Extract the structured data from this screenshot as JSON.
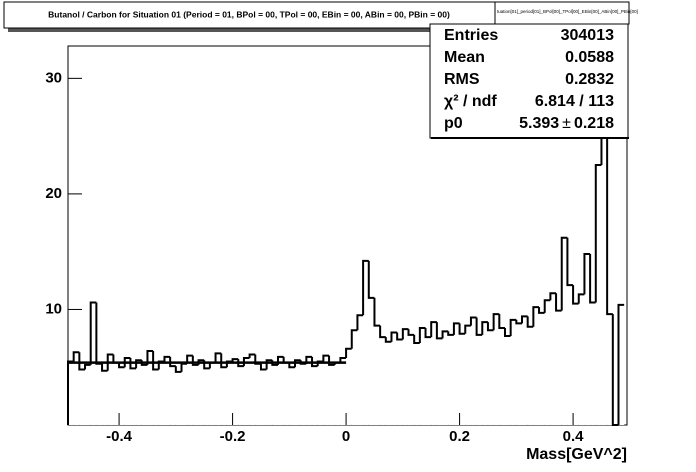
{
  "chart_data": {
    "type": "histogram",
    "title": "Butanol / Carbon for Situation 01 (Period = 01, BPol = 00, TPol = 00, EBin = 00, ABin = 00, PBin = 00)",
    "histogram_name": "tuation[01]_period[01]_BPol[00]_TPol[00]_EBin[00]_ABin[00]_PBin[00]",
    "x_label": "Mass[GeV^2]",
    "bins": [
      -0.49,
      -0.48,
      -0.47,
      -0.46,
      -0.45,
      -0.44,
      -0.43,
      -0.42,
      -0.41,
      -0.4,
      -0.39,
      -0.38,
      -0.37,
      -0.36,
      -0.35,
      -0.34,
      -0.33,
      -0.32,
      -0.31,
      -0.3,
      -0.29,
      -0.28,
      -0.27,
      -0.26,
      -0.25,
      -0.24,
      -0.23,
      -0.22,
      -0.21,
      -0.2,
      -0.19,
      -0.18,
      -0.17,
      -0.16,
      -0.15,
      -0.14,
      -0.13,
      -0.12,
      -0.11,
      -0.1,
      -0.09,
      -0.08,
      -0.07,
      -0.06,
      -0.05,
      -0.04,
      -0.03,
      -0.02,
      -0.01,
      0.0,
      0.01,
      0.02,
      0.03,
      0.04,
      0.05,
      0.06,
      0.07,
      0.08,
      0.09,
      0.1,
      0.11,
      0.12,
      0.13,
      0.14,
      0.15,
      0.16,
      0.17,
      0.18,
      0.19,
      0.2,
      0.21,
      0.22,
      0.23,
      0.24,
      0.25,
      0.26,
      0.27,
      0.28,
      0.29,
      0.3,
      0.31,
      0.32,
      0.33,
      0.34,
      0.35,
      0.36,
      0.37,
      0.38,
      0.39,
      0.4,
      0.41,
      0.42,
      0.43,
      0.44,
      0.45,
      0.46,
      0.47,
      0.48,
      0.49
    ],
    "values": [
      5.5,
      6.3,
      4.8,
      5.2,
      10.6,
      5.3,
      4.7,
      6.1,
      5.4,
      5.0,
      5.8,
      4.9,
      5.6,
      5.2,
      6.4,
      4.8,
      5.5,
      5.9,
      5.1,
      4.6,
      5.3,
      6.0,
      5.2,
      5.6,
      4.9,
      5.4,
      6.2,
      5.0,
      5.5,
      5.7,
      5.1,
      5.8,
      6.1,
      5.3,
      4.8,
      5.6,
      5.2,
      5.9,
      5.4,
      5.0,
      5.6,
      5.3,
      5.9,
      5.1,
      5.5,
      6.0,
      5.2,
      5.4,
      5.8,
      6.6,
      8.2,
      9.5,
      14.2,
      11.0,
      8.6,
      7.6,
      7.2,
      8.0,
      7.4,
      8.3,
      7.8,
      7.1,
      8.4,
      7.6,
      8.9,
      7.5,
      8.1,
      7.8,
      8.8,
      7.9,
      8.6,
      9.3,
      7.8,
      8.9,
      8.2,
      9.6,
      8.4,
      7.7,
      9.1,
      8.8,
      9.4,
      8.5,
      10.2,
      9.7,
      10.8,
      11.4,
      9.9,
      16.2,
      12.1,
      10.5,
      11.3,
      14.8,
      10.6,
      22.5,
      27.0,
      9.6,
      0.0,
      10.4
    ],
    "color": "#000000",
    "xlim": [
      -0.49,
      0.495
    ],
    "ylim": [
      0,
      32.8
    ],
    "xticks": [
      -0.4,
      -0.2,
      0,
      0.2,
      0.4
    ],
    "yticks": [
      10,
      20,
      30
    ],
    "fit": {
      "p0": 5.393,
      "p0_error": 0.218,
      "xlim": [
        -0.49,
        0
      ],
      "plus_minus": "±"
    },
    "stats": {
      "entries_label": "Entries",
      "entries": 304013,
      "mean_label": "Mean",
      "mean": 0.0588,
      "rms_label": "RMS",
      "rms": 0.2832,
      "chi2_label": "χ² / ndf",
      "chi2_ndf": "6.814 / 113",
      "p0_label": "p0"
    }
  }
}
